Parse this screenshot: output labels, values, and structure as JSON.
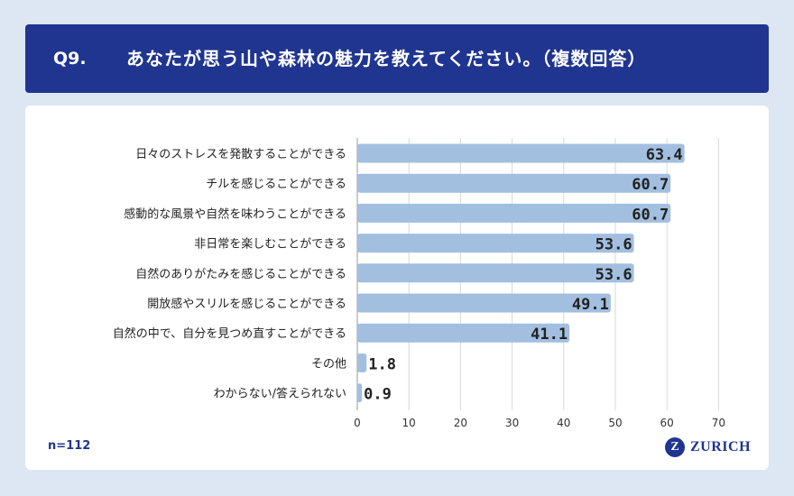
{
  "header": {
    "question_no": "Q9.",
    "title": "あなたが思う山や森林の魅力を教えてください。（複数回答）"
  },
  "footer": {
    "sample": "n=112",
    "logo_mark": "Z",
    "logo_text": "ZURICH"
  },
  "colors": {
    "header_bg": "#1f3590",
    "bar": "#a2bfe0",
    "page_bg": "#dde6f3"
  },
  "chart_data": {
    "type": "bar",
    "orientation": "horizontal",
    "categories": [
      "日々のストレスを発散することができる",
      "チルを感じることができる",
      "感動的な風景や自然を味わうことができる",
      "非日常を楽しむことができる",
      "自然のありがたみを感じることができる",
      "開放感やスリルを感じることができる",
      "自然の中で、自分を見つめ直すことができる",
      "その他",
      "わからない/答えられない"
    ],
    "values": [
      63.4,
      60.7,
      60.7,
      53.6,
      53.6,
      49.1,
      41.1,
      1.8,
      0.9
    ],
    "value_labels": [
      "63.4",
      "60.7",
      "60.7",
      "53.6",
      "53.6",
      "49.1",
      "41.1",
      "1.8",
      "0.9"
    ],
    "xlim": [
      0,
      70
    ],
    "ticks": [
      "0",
      "10",
      "20",
      "30",
      "40",
      "50",
      "60",
      "70"
    ],
    "grid": true,
    "title": "",
    "xlabel": "",
    "ylabel": ""
  }
}
